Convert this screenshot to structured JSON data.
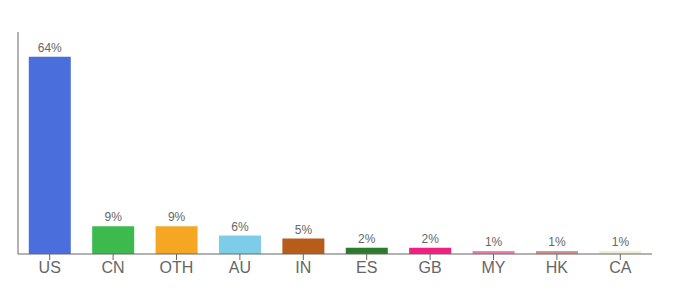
{
  "chart_data": {
    "type": "bar",
    "categories": [
      "US",
      "CN",
      "OTH",
      "AU",
      "IN",
      "ES",
      "GB",
      "MY",
      "HK",
      "CA"
    ],
    "values": [
      64,
      9,
      9,
      6,
      5,
      2,
      2,
      1,
      1,
      1
    ],
    "value_labels": [
      "64%",
      "9%",
      "9%",
      "6%",
      "5%",
      "2%",
      "2%",
      "1%",
      "1%",
      "1%"
    ],
    "colors": [
      "#4a6fdc",
      "#3dba4e",
      "#f5a623",
      "#7ecde8",
      "#b85c1a",
      "#2d7a2d",
      "#f02080",
      "#f080b0",
      "#d89090",
      "#f0f0d0"
    ],
    "ylim": [
      0,
      72
    ],
    "data_labels": true,
    "tick_labels": "x",
    "grid": false
  }
}
